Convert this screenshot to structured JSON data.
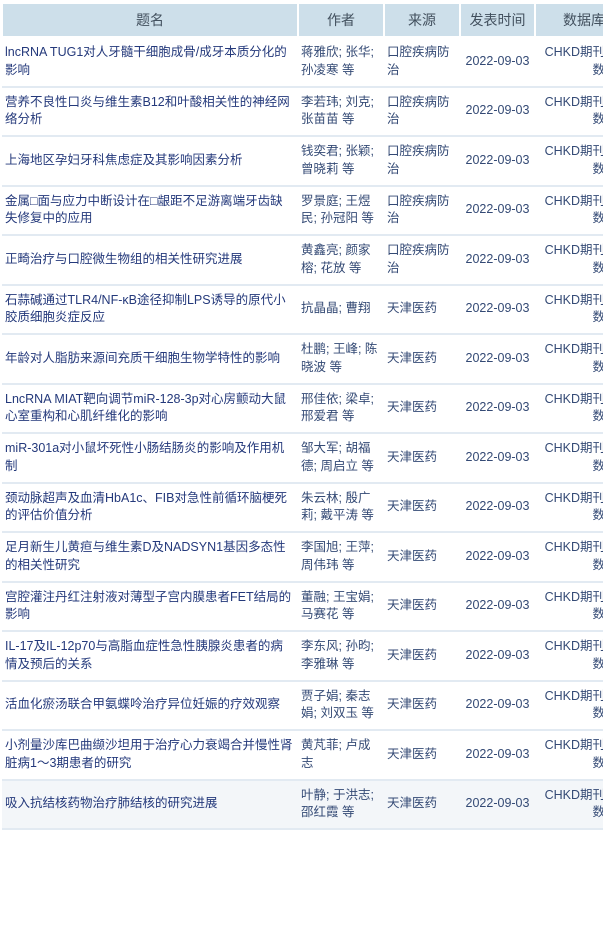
{
  "colors": {
    "header_bg": "#cddfea",
    "row_divider": "#e2eaf2",
    "title_link": "#24397b",
    "body_text": "#344a75",
    "muted_text": "#45484e",
    "last_row_highlight": "#f3f6f9"
  },
  "table": {
    "columns": [
      {
        "id": "title",
        "label": "题名"
      },
      {
        "id": "authors",
        "label": "作者"
      },
      {
        "id": "source",
        "label": "来源"
      },
      {
        "id": "date",
        "label": "发表时间"
      },
      {
        "id": "database",
        "label": "数据库"
      }
    ],
    "rows": [
      {
        "title": "lncRNA TUG1对人牙髓干细胞成骨/成牙本质分化的影响",
        "authors": "蒋雅欣; 张华; 孙凌寒 等",
        "source": "口腔疾病防治",
        "date": "2022-09-03",
        "database": "CHKD期刊全文数据库"
      },
      {
        "title": "营养不良性口炎与维生素B12和叶酸相关性的神经网络分析",
        "authors": "李若玮; 刘克; 张苗苗 等",
        "source": "口腔疾病防治",
        "date": "2022-09-03",
        "database": "CHKD期刊全文数据库"
      },
      {
        "title": "上海地区孕妇牙科焦虑症及其影响因素分析",
        "authors": "钱奕君; 张颖; 曾晓莉 等",
        "source": "口腔疾病防治",
        "date": "2022-09-03",
        "database": "CHKD期刊全文数据库"
      },
      {
        "title": "金属□面与应力中断设计在□龈距不足游离端牙齿缺失修复中的应用",
        "authors": "罗景庭; 王煜民; 孙冠阳 等",
        "source": "口腔疾病防治",
        "date": "2022-09-03",
        "database": "CHKD期刊全文数据库"
      },
      {
        "title": "正畸治疗与口腔微生物组的相关性研究进展",
        "authors": "黄鑫亮; 颜家榕; 花放 等",
        "source": "口腔疾病防治",
        "date": "2022-09-03",
        "database": "CHKD期刊全文数据库"
      },
      {
        "title": "石蒜碱通过TLR4/NF-κB途径抑制LPS诱导的原代小胶质细胞炎症反应",
        "authors": "抗晶晶; 曹翔",
        "source": "天津医药",
        "date": "2022-09-03",
        "database": "CHKD期刊全文数据库"
      },
      {
        "title": "年龄对人脂肪来源间充质干细胞生物学特性的影响",
        "authors": "杜鹏; 王峰; 陈晓波 等",
        "source": "天津医药",
        "date": "2022-09-03",
        "database": "CHKD期刊全文数据库"
      },
      {
        "title": "LncRNA MIAT靶向调节miR-128-3p对心房颤动大鼠心室重构和心肌纤维化的影响",
        "authors": "邢佳依; 梁卓; 邢爱君 等",
        "source": "天津医药",
        "date": "2022-09-03",
        "database": "CHKD期刊全文数据库"
      },
      {
        "title": "miR-301a对小鼠坏死性小肠结肠炎的影响及作用机制",
        "authors": "邹大军; 胡福德; 周启立 等",
        "source": "天津医药",
        "date": "2022-09-03",
        "database": "CHKD期刊全文数据库"
      },
      {
        "title": "颈动脉超声及血清HbA1c、FIB对急性前循环脑梗死的评估价值分析",
        "authors": "朱云林; 殷广莉; 戴平涛 等",
        "source": "天津医药",
        "date": "2022-09-03",
        "database": "CHKD期刊全文数据库"
      },
      {
        "title": "足月新生儿黄疸与维生素D及NADSYN1基因多态性的相关性研究",
        "authors": "李国旭; 王萍; 周伟玮 等",
        "source": "天津医药",
        "date": "2022-09-03",
        "database": "CHKD期刊全文数据库"
      },
      {
        "title": "宫腔灌注丹红注射液对薄型子宫内膜患者FET结局的影响",
        "authors": "董融; 王宝娟; 马赛花 等",
        "source": "天津医药",
        "date": "2022-09-03",
        "database": "CHKD期刊全文数据库"
      },
      {
        "title": "IL-17及IL-12p70与高脂血症性急性胰腺炎患者的病情及预后的关系",
        "authors": "李东风; 孙昀; 李雅琳 等",
        "source": "天津医药",
        "date": "2022-09-03",
        "database": "CHKD期刊全文数据库"
      },
      {
        "title": "活血化瘀汤联合甲氨蝶呤治疗异位妊娠的疗效观察",
        "authors": "贾子娟; 秦志娟; 刘双玉 等",
        "source": "天津医药",
        "date": "2022-09-03",
        "database": "CHKD期刊全文数据库"
      },
      {
        "title": "小剂量沙库巴曲缬沙坦用于治疗心力衰竭合并慢性肾脏病1～3期患者的研究",
        "authors": "黄芃菲; 卢成志",
        "source": "天津医药",
        "date": "2022-09-03",
        "database": "CHKD期刊全文数据库"
      },
      {
        "title": "吸入抗结核药物治疗肺结核的研究进展",
        "authors": "叶静; 于洪志; 邵红霞 等",
        "source": "天津医药",
        "date": "2022-09-03",
        "database": "CHKD期刊全文数据库"
      }
    ]
  }
}
